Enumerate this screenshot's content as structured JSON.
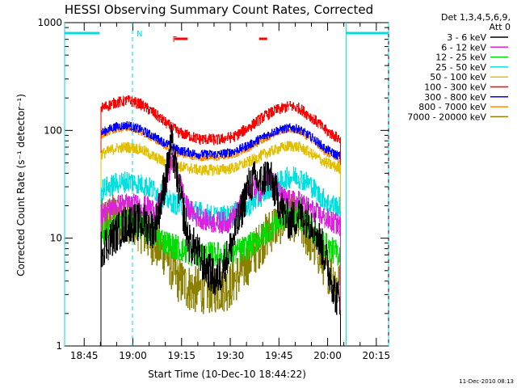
{
  "chart_data": {
    "type": "line",
    "title": "HESSI Observing Summary Count Rates, Corrected",
    "xlabel": "Start Time (10-Dec-10 18:44:22)",
    "ylabel": "Corrected Count Rate (s⁻¹ detector⁻¹)",
    "yscale": "log",
    "ylim": [
      1,
      1000
    ],
    "y_ticks": [
      {
        "value": 1,
        "label": "1"
      },
      {
        "value": 10,
        "label": "10"
      },
      {
        "value": 100,
        "label": "100"
      },
      {
        "value": 1000,
        "label": "1000"
      }
    ],
    "x_unit": "minutes since 18:44:22",
    "xlim": [
      -5.4,
      94.4
    ],
    "x_ticks": [
      {
        "value": 0.63,
        "label": "18:45"
      },
      {
        "value": 15.63,
        "label": "19:00"
      },
      {
        "value": 30.63,
        "label": "19:15"
      },
      {
        "value": 45.63,
        "label": "19:30"
      },
      {
        "value": 60.63,
        "label": "19:45"
      },
      {
        "value": 75.63,
        "label": "20:00"
      },
      {
        "value": 90.63,
        "label": "20:15"
      }
    ],
    "data_start": 5.8,
    "data_end": 79.6,
    "legend": {
      "header_line1": "Det 1,3,4,5,6,9,",
      "header_line2": "Att 0",
      "placement": "right"
    },
    "series": [
      {
        "name": "3 - 6 keV",
        "color": "#000000",
        "noise": 0.18,
        "points": [
          [
            5.8,
            8
          ],
          [
            9,
            10
          ],
          [
            14,
            14
          ],
          [
            19,
            14
          ],
          [
            22,
            12
          ],
          [
            24,
            20
          ],
          [
            26,
            40
          ],
          [
            27.5,
            75
          ],
          [
            29,
            40
          ],
          [
            31,
            18
          ],
          [
            33,
            9
          ],
          [
            35,
            8
          ],
          [
            37,
            6
          ],
          [
            39,
            5
          ],
          [
            41,
            4
          ],
          [
            43,
            5
          ],
          [
            45,
            7
          ],
          [
            47,
            11
          ],
          [
            49,
            18
          ],
          [
            51,
            30
          ],
          [
            53,
            35
          ],
          [
            55,
            33
          ],
          [
            57,
            40
          ],
          [
            59,
            30
          ],
          [
            61,
            20
          ],
          [
            64,
            14
          ],
          [
            67,
            17
          ],
          [
            71,
            14
          ],
          [
            74,
            8
          ],
          [
            76,
            5
          ],
          [
            78,
            3
          ],
          [
            79.6,
            2.5
          ]
        ]
      },
      {
        "name": "6 - 12 keV",
        "color": "#e020e0",
        "noise": 0.1,
        "points": [
          [
            5.8,
            17
          ],
          [
            10,
            20
          ],
          [
            14,
            21
          ],
          [
            19,
            20
          ],
          [
            23,
            18
          ],
          [
            25,
            25
          ],
          [
            27,
            45
          ],
          [
            28.5,
            55
          ],
          [
            30,
            35
          ],
          [
            32,
            20
          ],
          [
            35,
            16
          ],
          [
            40,
            14
          ],
          [
            45,
            14
          ],
          [
            48,
            18
          ],
          [
            51,
            28
          ],
          [
            53,
            30
          ],
          [
            55,
            27
          ],
          [
            57,
            40
          ],
          [
            59,
            32
          ],
          [
            61,
            25
          ],
          [
            64,
            22
          ],
          [
            67,
            22
          ],
          [
            71,
            18
          ],
          [
            75,
            15
          ],
          [
            79.6,
            13
          ]
        ]
      },
      {
        "name": "12 - 25 keV",
        "color": "#00dd00",
        "noise": 0.12,
        "points": [
          [
            5.8,
            11
          ],
          [
            10,
            13
          ],
          [
            14,
            14
          ],
          [
            18,
            13
          ],
          [
            22,
            11
          ],
          [
            26,
            9
          ],
          [
            30,
            8
          ],
          [
            35,
            7
          ],
          [
            40,
            7
          ],
          [
            45,
            7
          ],
          [
            50,
            8
          ],
          [
            53,
            9
          ],
          [
            56,
            11
          ],
          [
            60,
            14
          ],
          [
            64,
            17
          ],
          [
            67,
            16
          ],
          [
            70,
            13
          ],
          [
            73,
            10
          ],
          [
            76,
            8
          ],
          [
            79.6,
            7
          ]
        ]
      },
      {
        "name": "25 - 50 keV",
        "color": "#00e0e0",
        "noise": 0.1,
        "points": [
          [
            5.8,
            28
          ],
          [
            10,
            32
          ],
          [
            14,
            34
          ],
          [
            18,
            32
          ],
          [
            22,
            28
          ],
          [
            26,
            23
          ],
          [
            30,
            20
          ],
          [
            35,
            18
          ],
          [
            40,
            16
          ],
          [
            45,
            16
          ],
          [
            50,
            19
          ],
          [
            54,
            23
          ],
          [
            58,
            30
          ],
          [
            63,
            36
          ],
          [
            66,
            38
          ],
          [
            70,
            32
          ],
          [
            73,
            25
          ],
          [
            76,
            21
          ],
          [
            79.6,
            19
          ]
        ]
      },
      {
        "name": "50 - 100 keV",
        "color": "#e0c000",
        "noise": 0.05,
        "points": [
          [
            5.8,
            60
          ],
          [
            10,
            68
          ],
          [
            14,
            70
          ],
          [
            18,
            67
          ],
          [
            22,
            57
          ],
          [
            26,
            50
          ],
          [
            30,
            46
          ],
          [
            36,
            43
          ],
          [
            42,
            43
          ],
          [
            47,
            45
          ],
          [
            52,
            52
          ],
          [
            56,
            60
          ],
          [
            60,
            67
          ],
          [
            64,
            72
          ],
          [
            67,
            70
          ],
          [
            71,
            60
          ],
          [
            75,
            50
          ],
          [
            79.6,
            44
          ]
        ]
      },
      {
        "name": "100 - 300 keV",
        "color": "#ff0000",
        "noise": 0.05,
        "points": [
          [
            5.8,
            160
          ],
          [
            10,
            180
          ],
          [
            14,
            190
          ],
          [
            18,
            175
          ],
          [
            22,
            145
          ],
          [
            26,
            115
          ],
          [
            30,
            95
          ],
          [
            36,
            83
          ],
          [
            42,
            82
          ],
          [
            47,
            88
          ],
          [
            52,
            110
          ],
          [
            56,
            135
          ],
          [
            60,
            155
          ],
          [
            64,
            168
          ],
          [
            67,
            160
          ],
          [
            71,
            130
          ],
          [
            75,
            100
          ],
          [
            79.6,
            82
          ]
        ]
      },
      {
        "name": "300 - 800 keV",
        "color": "#0000ff",
        "noise": 0.04,
        "points": [
          [
            5.8,
            95
          ],
          [
            10,
            108
          ],
          [
            14,
            112
          ],
          [
            18,
            102
          ],
          [
            22,
            88
          ],
          [
            26,
            75
          ],
          [
            30,
            65
          ],
          [
            36,
            60
          ],
          [
            42,
            60
          ],
          [
            47,
            64
          ],
          [
            52,
            75
          ],
          [
            56,
            88
          ],
          [
            60,
            100
          ],
          [
            64,
            106
          ],
          [
            67,
            102
          ],
          [
            71,
            85
          ],
          [
            75,
            67
          ],
          [
            79.6,
            57
          ]
        ]
      },
      {
        "name": "800 - 7000 keV",
        "color": "#ff8c00",
        "noise": 0.03,
        "points": [
          [
            5.8,
            90
          ],
          [
            10,
            102
          ],
          [
            14,
            105
          ],
          [
            18,
            97
          ],
          [
            22,
            83
          ],
          [
            26,
            70
          ],
          [
            30,
            60
          ],
          [
            36,
            56
          ],
          [
            42,
            56
          ],
          [
            47,
            60
          ],
          [
            52,
            70
          ],
          [
            56,
            83
          ],
          [
            60,
            96
          ],
          [
            64,
            102
          ],
          [
            67,
            98
          ],
          [
            71,
            80
          ],
          [
            75,
            62
          ],
          [
            79.6,
            52
          ]
        ]
      },
      {
        "name": "7000 - 20000 keV",
        "color": "#8b8000",
        "noise": 0.22,
        "points": [
          [
            5.8,
            14
          ],
          [
            10,
            16
          ],
          [
            14,
            15
          ],
          [
            18,
            12
          ],
          [
            22,
            9
          ],
          [
            26,
            7
          ],
          [
            28,
            5
          ],
          [
            30,
            4
          ],
          [
            34,
            3.3
          ],
          [
            40,
            3.3
          ],
          [
            45,
            3.5
          ],
          [
            48,
            4.5
          ],
          [
            51,
            6
          ],
          [
            55,
            9
          ],
          [
            59,
            13
          ],
          [
            63,
            16
          ],
          [
            66,
            15
          ],
          [
            69,
            11
          ],
          [
            72,
            8
          ],
          [
            75,
            5.5
          ],
          [
            78,
            4
          ],
          [
            79.6,
            3.5
          ]
        ]
      }
    ],
    "flag_markers": [
      {
        "letter": "N",
        "start": 15.5,
        "color": "#00dddd"
      },
      {
        "letter": "F",
        "start": 26.6,
        "color": "#ff0000"
      }
    ],
    "flag_bars": [
      {
        "row": "N",
        "color": "#00dddd",
        "x": [
          -5.4,
          5.4
        ]
      },
      {
        "row": "N",
        "color": "#00dddd",
        "x": [
          81.3,
          94.4
        ]
      },
      {
        "row": "F",
        "color": "#ff0000",
        "x": [
          28.5,
          32.5
        ]
      },
      {
        "row": "F",
        "color": "#ff0000",
        "x": [
          54.5,
          57.0
        ]
      }
    ],
    "vertical_lines": [
      {
        "x": -5.4,
        "color": "#00dddd",
        "style": "solid"
      },
      {
        "x": 15.5,
        "color": "#00dddd",
        "style": "dashed"
      },
      {
        "x": 81.3,
        "color": "#00dddd",
        "style": "solid"
      },
      {
        "x": 94.4,
        "color": "#00dddd",
        "style": "dashed"
      }
    ]
  },
  "footer": {
    "timestamp": "11-Dec-2010 08:13"
  }
}
